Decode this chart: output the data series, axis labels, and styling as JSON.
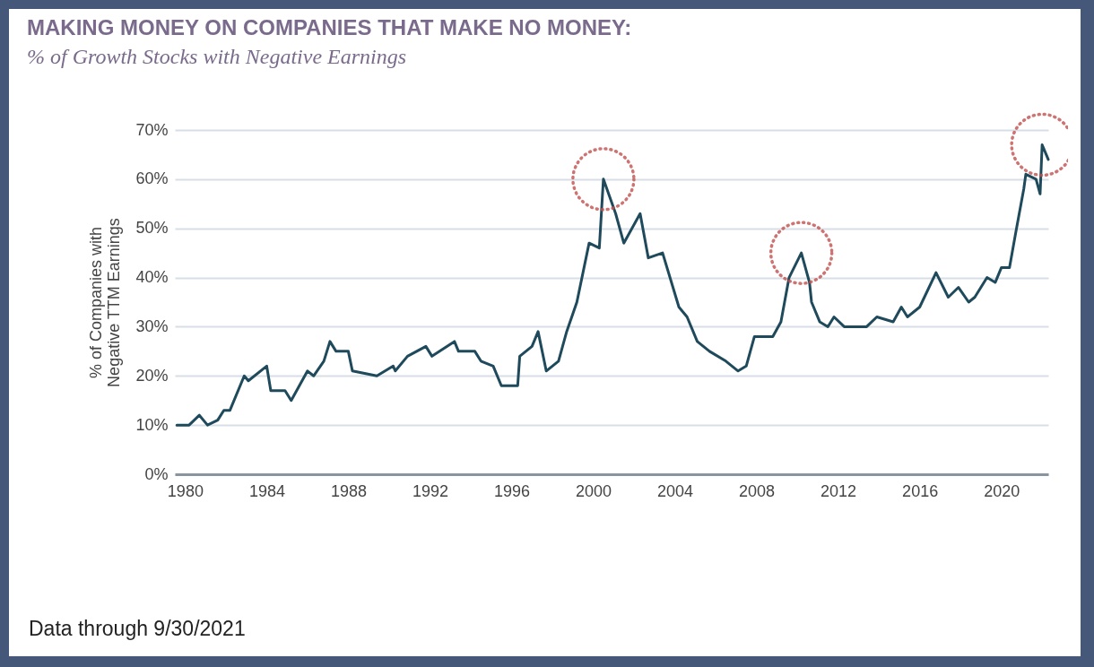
{
  "chart_data": {
    "type": "line",
    "title": "MAKING MONEY ON COMPANIES THAT MAKE NO MONEY:",
    "subtitle": "% of Growth Stocks with Negative Earnings",
    "ylabel": "% of Companies with\nNegative TTM Earnings",
    "x": [
      1979.6,
      1980.2,
      1980.7,
      1981.1,
      1981.6,
      1981.9,
      1982.2,
      1982.9,
      1983.1,
      1984.0,
      1984.2,
      1984.9,
      1985.2,
      1986.0,
      1986.3,
      1986.8,
      1987.1,
      1987.4,
      1988.0,
      1988.2,
      1989.4,
      1990.2,
      1990.3,
      1990.9,
      1991.8,
      1992.1,
      1993.2,
      1993.4,
      1994.2,
      1994.5,
      1995.1,
      1995.5,
      1996.3,
      1996.4,
      1997.0,
      1997.3,
      1997.7,
      1998.3,
      1998.7,
      1999.2,
      1999.8,
      2000.3,
      2000.5,
      2001.1,
      2001.5,
      2002.3,
      2002.7,
      2003.4,
      2004.2,
      2004.6,
      2005.1,
      2005.7,
      2006.5,
      2007.1,
      2007.5,
      2007.9,
      2008.8,
      2009.2,
      2009.6,
      2010.2,
      2010.6,
      2010.7,
      2011.1,
      2011.5,
      2011.8,
      2012.3,
      2013.0,
      2013.4,
      2013.9,
      2014.7,
      2015.1,
      2015.4,
      2016.0,
      2016.8,
      2017.4,
      2017.9,
      2018.4,
      2018.7,
      2019.3,
      2019.7,
      2020.0,
      2020.4,
      2020.7,
      2021.1,
      2021.2,
      2021.7,
      2021.9,
      2022.0,
      2022.3
    ],
    "series": [
      {
        "color": "#1f4a5c",
        "values": [
          10,
          10,
          12,
          10,
          11,
          13,
          13,
          20,
          19,
          22,
          17,
          17,
          15,
          21,
          20,
          23,
          27,
          25,
          25,
          21,
          20,
          22,
          21,
          24,
          26,
          24,
          27,
          25,
          25,
          23,
          22,
          18,
          18,
          24,
          26,
          29,
          21,
          23,
          29,
          35,
          47,
          46,
          60,
          53,
          47,
          53,
          44,
          45,
          34,
          32,
          27,
          25,
          23,
          21,
          22,
          28,
          28,
          31,
          40,
          45,
          39,
          35,
          31,
          30,
          32,
          30,
          30,
          30,
          32,
          31,
          34,
          32,
          34,
          41,
          36,
          38,
          35,
          36,
          40,
          39,
          42,
          42,
          49,
          58,
          61,
          60,
          57,
          67,
          64
        ]
      }
    ],
    "xlim": [
      1979.5,
      2022.3
    ],
    "xticks": [
      1980,
      1984,
      1988,
      1992,
      1996,
      2000,
      2004,
      2008,
      2012,
      2016,
      2020
    ],
    "ylim": [
      0,
      70
    ],
    "yticks": [
      {
        "value": 0,
        "label": "0%"
      },
      {
        "value": 10,
        "label": "10%"
      },
      {
        "value": 20,
        "label": "20%"
      },
      {
        "value": 30,
        "label": "30%"
      },
      {
        "value": 40,
        "label": "40%"
      },
      {
        "value": 50,
        "label": "50%"
      },
      {
        "value": 60,
        "label": "60%"
      },
      {
        "value": 70,
        "label": "70%"
      }
    ],
    "grid": "y",
    "annotations": [
      "Data through 9/30/2021"
    ]
  }
}
